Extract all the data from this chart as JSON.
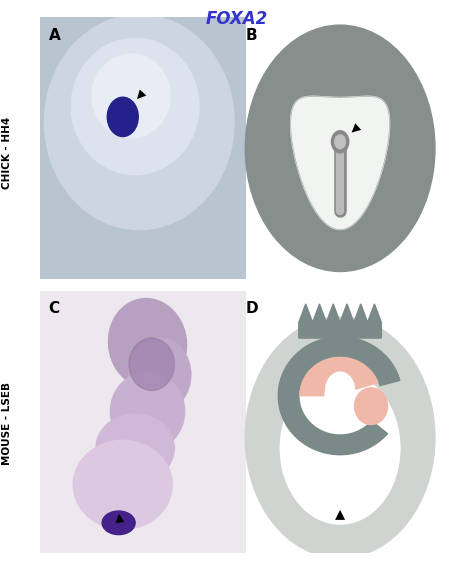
{
  "title": "FOXA2",
  "title_color": "#3333cc",
  "title_fontsize": 12,
  "bg_color": "#ffffff",
  "label_A": "A",
  "label_B": "B",
  "label_C": "C",
  "label_D": "D",
  "side_label_top": "CHICK - HH4",
  "side_label_bottom": "MOUSE - LSEB",
  "gray_dark": "#7a8a88",
  "gray_mid": "#9aabaa",
  "gray_light": "#c8d0cc",
  "salmon": "#f0b8a8",
  "white": "#f8f8f8",
  "black": "#111111"
}
